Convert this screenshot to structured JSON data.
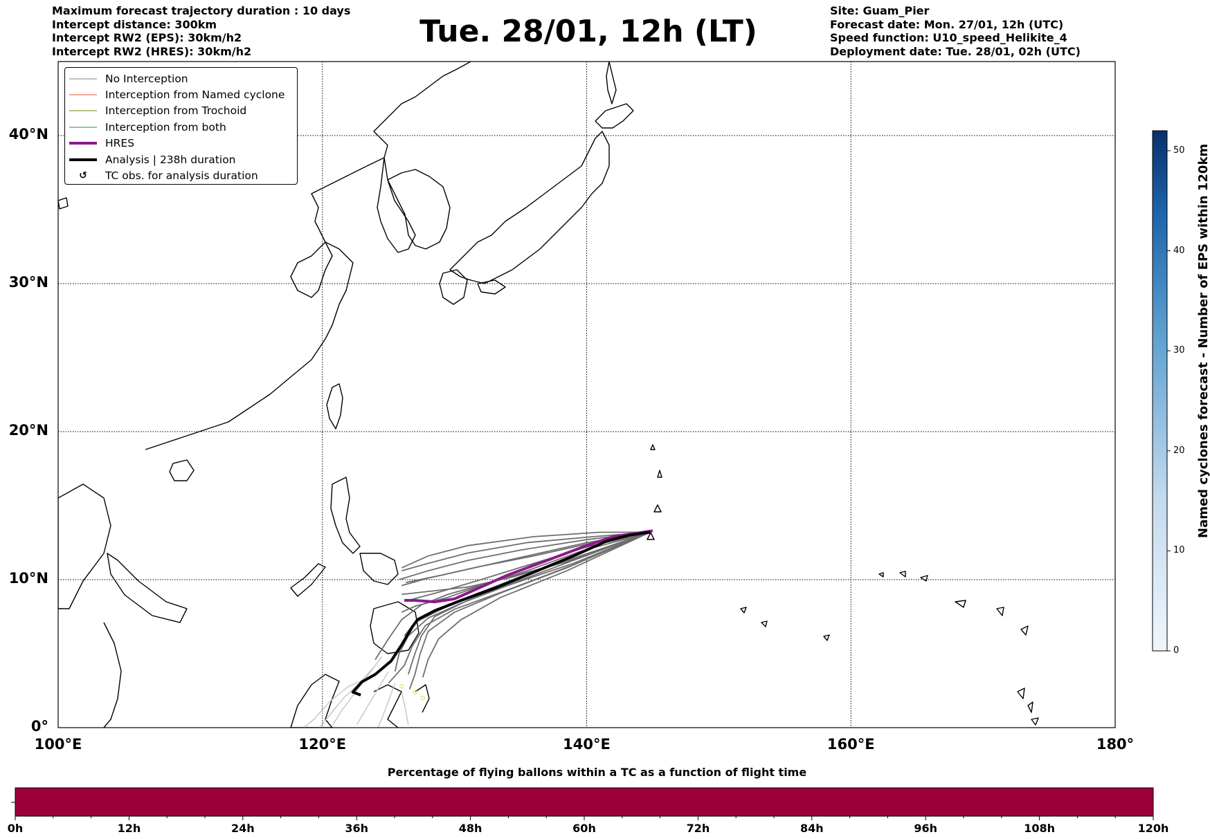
{
  "header": {
    "left": [
      "Maximum forecast trajectory duration : 10 days",
      "Intercept distance: 300km",
      "Intercept RW2 (EPS):  30km/h2",
      "Intercept RW2 (HRES): 30km/h2"
    ],
    "title": "Tue. 28/01, 12h (LT)",
    "right": [
      "Site: Guam_Pier",
      "Forecast date: Mon. 27/01, 12h (UTC)",
      "Speed function: U10_speed_Helikite_4",
      "Deployment date: Tue. 28/01, 02h (UTC)"
    ]
  },
  "map": {
    "lon_range": [
      100,
      180
    ],
    "lat_range": [
      0,
      45
    ],
    "lat_labels": [
      {
        "lat": 40,
        "text": "40°N"
      },
      {
        "lat": 30,
        "text": "30°N"
      },
      {
        "lat": 20,
        "text": "20°N"
      },
      {
        "lat": 10,
        "text": "10°N"
      },
      {
        "lat": 0,
        "text": "0°"
      }
    ],
    "lon_labels": [
      {
        "lon": 100,
        "text": "100°E"
      },
      {
        "lon": 120,
        "text": "120°E"
      },
      {
        "lon": 140,
        "text": "140°E"
      },
      {
        "lon": 160,
        "text": "160°E"
      },
      {
        "lon": 180,
        "text": "180°"
      }
    ],
    "grid_lats": [
      10,
      20,
      30,
      40
    ],
    "grid_lons": [
      120,
      140,
      160
    ]
  },
  "legend": {
    "items": [
      {
        "label": "No Interception",
        "color": "#7f7f7f",
        "kind": "thin"
      },
      {
        "label": "Interception from Named cyclone",
        "color": "#e8502a",
        "kind": "thin"
      },
      {
        "label": "Interception from Trochoid",
        "color": "#808000",
        "kind": "thin"
      },
      {
        "label": "Interception from both",
        "color": "#2e8b2e",
        "kind": "thin"
      },
      {
        "label": "HRES",
        "color": "#8b1a8b",
        "kind": "thick"
      },
      {
        "label": "Analysis | 238h duration",
        "color": "#000000",
        "kind": "thick"
      },
      {
        "label": "TC obs. for analysis duration",
        "color": "#000000",
        "kind": "marker"
      }
    ]
  },
  "colorbar": {
    "label": "Named cyclones forecast - Number of EPS within 120km",
    "ticks": [
      "0",
      "10",
      "20",
      "30",
      "40",
      "50"
    ],
    "max": 52,
    "color_low": "#f0f6fc",
    "color_high": "#08306b"
  },
  "timeline": {
    "title": "Percentage of flying ballons within a TC as a function of flight time",
    "ticks": [
      "0h",
      "12h",
      "24h",
      "36h",
      "48h",
      "60h",
      "72h",
      "84h",
      "96h",
      "108h",
      "120h"
    ],
    "fill_color": "#9b0039"
  },
  "tracks": {
    "eps_color": "#6e6e6e",
    "eps_light_color": "#c8c8c8",
    "hres": [
      [
        145.0,
        13.3
      ],
      [
        143.5,
        13.1
      ],
      [
        142.0,
        12.9
      ],
      [
        140.0,
        12.3
      ],
      [
        137.0,
        11.3
      ],
      [
        134.0,
        10.3
      ],
      [
        131.5,
        9.3
      ],
      [
        130.0,
        8.7
      ],
      [
        128.5,
        8.5
      ],
      [
        127.0,
        8.6
      ],
      [
        126.2,
        8.6
      ]
    ],
    "analysis": [
      [
        144.8,
        13.2
      ],
      [
        143.2,
        13.0
      ],
      [
        141.5,
        12.6
      ],
      [
        139.0,
        11.6
      ],
      [
        136.0,
        10.5
      ],
      [
        133.0,
        9.4
      ],
      [
        130.5,
        8.6
      ],
      [
        128.5,
        7.9
      ],
      [
        127.2,
        7.3
      ],
      [
        126.8,
        6.8
      ],
      [
        126.0,
        5.6
      ],
      [
        125.2,
        4.5
      ],
      [
        124.0,
        3.6
      ],
      [
        123.0,
        3.1
      ],
      [
        122.3,
        2.4
      ],
      [
        122.9,
        2.2
      ]
    ],
    "eps": [
      [
        [
          144.8,
          13.2
        ],
        [
          141.0,
          13.2
        ],
        [
          136.0,
          12.9
        ],
        [
          131.0,
          12.3
        ],
        [
          128.0,
          11.6
        ],
        [
          126.0,
          10.8
        ]
      ],
      [
        [
          144.8,
          13.2
        ],
        [
          140.5,
          12.9
        ],
        [
          135.5,
          12.5
        ],
        [
          131.0,
          11.8
        ],
        [
          128.0,
          11.1
        ],
        [
          126.0,
          10.6
        ]
      ],
      [
        [
          144.8,
          13.2
        ],
        [
          140.0,
          12.7
        ],
        [
          135.0,
          12.0
        ],
        [
          131.0,
          11.3
        ],
        [
          128.0,
          10.6
        ],
        [
          125.8,
          10.0
        ]
      ],
      [
        [
          144.8,
          13.2
        ],
        [
          140.0,
          12.5
        ],
        [
          135.0,
          11.5
        ],
        [
          131.0,
          10.7
        ],
        [
          128.0,
          10.1
        ],
        [
          126.0,
          9.6
        ]
      ],
      [
        [
          144.8,
          13.2
        ],
        [
          140.0,
          12.2
        ],
        [
          136.0,
          11.1
        ],
        [
          132.0,
          10.0
        ],
        [
          129.0,
          9.2
        ],
        [
          126.5,
          8.6
        ]
      ],
      [
        [
          144.8,
          13.2
        ],
        [
          139.5,
          11.9
        ],
        [
          135.5,
          10.6
        ],
        [
          132.0,
          9.6
        ],
        [
          129.5,
          8.8
        ],
        [
          127.0,
          8.2
        ],
        [
          126.0,
          7.8
        ]
      ],
      [
        [
          144.8,
          13.2
        ],
        [
          139.5,
          11.6
        ],
        [
          135.0,
          10.2
        ],
        [
          131.5,
          9.0
        ],
        [
          129.0,
          8.0
        ],
        [
          127.0,
          7.1
        ],
        [
          126.2,
          6.2
        ]
      ],
      [
        [
          144.8,
          13.2
        ],
        [
          139.0,
          11.3
        ],
        [
          134.5,
          9.8
        ],
        [
          131.0,
          8.6
        ],
        [
          128.5,
          7.5
        ],
        [
          127.5,
          6.2
        ],
        [
          127.0,
          5.0
        ],
        [
          126.5,
          3.6
        ]
      ],
      [
        [
          144.8,
          13.2
        ],
        [
          139.0,
          11.1
        ],
        [
          134.0,
          9.6
        ],
        [
          130.5,
          8.4
        ],
        [
          128.0,
          7.4
        ],
        [
          126.5,
          6.2
        ],
        [
          125.8,
          5.0
        ],
        [
          125.5,
          3.8
        ]
      ],
      [
        [
          144.8,
          13.2
        ],
        [
          139.0,
          11.0
        ],
        [
          134.0,
          9.3
        ],
        [
          130.0,
          8.0
        ],
        [
          127.8,
          6.9
        ],
        [
          126.8,
          5.5
        ],
        [
          126.2,
          4.2
        ],
        [
          125.0,
          3.0
        ]
      ],
      [
        [
          144.8,
          13.2
        ],
        [
          138.5,
          10.8
        ],
        [
          133.5,
          9.1
        ],
        [
          130.0,
          7.8
        ],
        [
          128.0,
          6.5
        ],
        [
          127.4,
          5.0
        ],
        [
          127.0,
          3.6
        ],
        [
          126.6,
          2.6
        ]
      ],
      [
        [
          144.8,
          13.2
        ],
        [
          138.5,
          10.6
        ],
        [
          133.5,
          8.8
        ],
        [
          130.5,
          7.3
        ],
        [
          128.8,
          6.0
        ],
        [
          128.0,
          4.6
        ],
        [
          127.6,
          3.4
        ]
      ],
      [
        [
          144.8,
          13.2
        ],
        [
          139.0,
          11.4
        ],
        [
          134.5,
          10.2
        ],
        [
          131.0,
          9.5
        ],
        [
          128.0,
          9.2
        ],
        [
          126.0,
          9.0
        ]
      ],
      [
        [
          144.8,
          13.2
        ],
        [
          140.0,
          12.4
        ],
        [
          136.0,
          11.6
        ],
        [
          132.0,
          10.9
        ],
        [
          129.0,
          10.3
        ],
        [
          126.3,
          9.8
        ]
      ],
      [
        [
          144.8,
          13.2
        ],
        [
          138.5,
          11.2
        ],
        [
          133.0,
          9.9
        ],
        [
          129.5,
          9.0
        ],
        [
          127.5,
          8.3
        ],
        [
          126.0,
          7.3
        ],
        [
          125.0,
          6.0
        ],
        [
          124.0,
          4.6
        ]
      ]
    ],
    "eps_light": [
      [
        [
          124.5,
          4.8
        ],
        [
          123.5,
          3.6
        ],
        [
          122.5,
          2.4
        ],
        [
          121.5,
          1.2
        ],
        [
          120.8,
          0.2
        ]
      ],
      [
        [
          124.0,
          4.2
        ],
        [
          122.8,
          3.0
        ],
        [
          121.6,
          2.0
        ],
        [
          120.5,
          0.8
        ],
        [
          119.8,
          0.0
        ]
      ],
      [
        [
          125.0,
          3.8
        ],
        [
          124.2,
          2.6
        ],
        [
          123.4,
          1.4
        ],
        [
          122.6,
          0.2
        ]
      ],
      [
        [
          123.6,
          3.4
        ],
        [
          122.0,
          2.8
        ],
        [
          120.6,
          1.8
        ],
        [
          119.4,
          0.6
        ],
        [
          118.6,
          0.0
        ]
      ],
      [
        [
          125.5,
          3.0
        ],
        [
          125.0,
          1.8
        ],
        [
          124.5,
          0.6
        ],
        [
          124.2,
          0.0
        ]
      ],
      [
        [
          126.0,
          2.4
        ],
        [
          126.3,
          1.2
        ],
        [
          126.5,
          0.2
        ]
      ]
    ],
    "tc_obs_color": "#f0e050",
    "tc_obs": [
      [
        126.0,
        2.8
      ],
      [
        127.0,
        2.4
      ],
      [
        127.6,
        2.0
      ]
    ]
  }
}
